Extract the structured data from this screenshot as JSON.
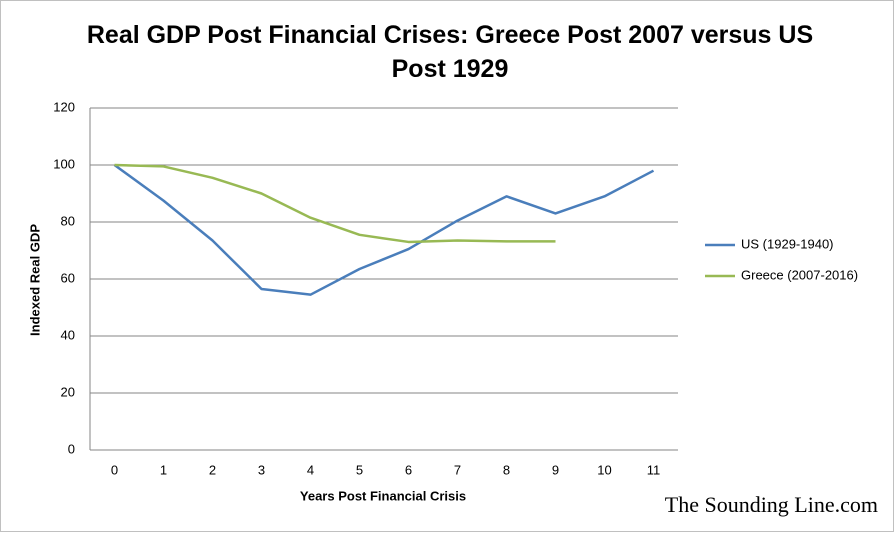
{
  "chart_data": {
    "type": "line",
    "title": "Real GDP Post Financial Crises: Greece Post 2007 versus US Post 1929",
    "x_label": "Years Post Financial Crisis",
    "y_label": "Indexed Real GDP",
    "categories": [
      "0",
      "1",
      "2",
      "3",
      "4",
      "5",
      "6",
      "7",
      "8",
      "9",
      "10",
      "11"
    ],
    "series": [
      {
        "name": "US (1929-1940)",
        "color": "#4a7ebb",
        "values": [
          100,
          87.5,
          73.5,
          56.5,
          54.5,
          63.5,
          70.5,
          80.5,
          89,
          83,
          89,
          98
        ]
      },
      {
        "name": "Greece (2007-2016)",
        "color": "#98b954",
        "values": [
          100,
          99.5,
          95.5,
          90,
          81.5,
          75.5,
          73,
          73.5,
          73.2,
          73.2,
          null,
          null
        ]
      }
    ],
    "ylim": [
      0,
      120
    ],
    "yticks": [
      0,
      20,
      40,
      60,
      80,
      100,
      120
    ],
    "grid": true,
    "legend": "right",
    "watermark": "The Sounding Line.com"
  }
}
